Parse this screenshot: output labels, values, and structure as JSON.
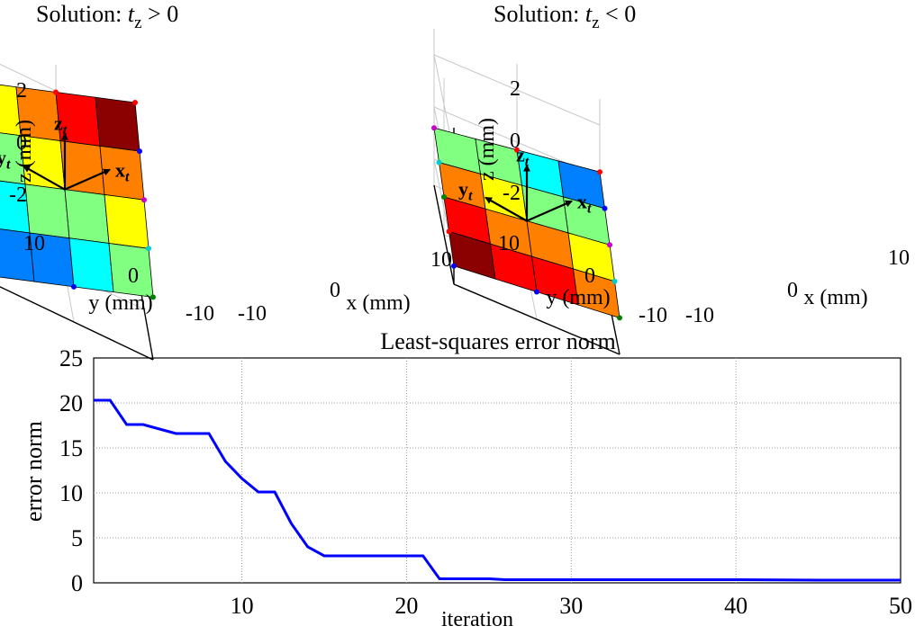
{
  "chart_data": [
    {
      "type": "surface3d",
      "title": {
        "prefix": "Solution: ",
        "var": "t",
        "sub": "z",
        "rel": " > 0"
      },
      "xlabel": "x (mm)",
      "ylabel": "y (mm)",
      "zlabel": "z (mm)",
      "xlim": [
        -10,
        10
      ],
      "ylim": [
        -10,
        10
      ],
      "zlim": [
        -3,
        3
      ],
      "xticks": [
        "-10",
        "0",
        "10"
      ],
      "yticks": [
        "-10",
        "0",
        "10"
      ],
      "zticks": [
        "-2",
        "0",
        "2"
      ],
      "frame_axes": {
        "x": "x",
        "y": "y",
        "z": "z",
        "sub": "t"
      },
      "plane_z_corners": {
        "x-y-": -2.7,
        "x+y-": -0.6,
        "x-y+": 0.9,
        "x+y+": 3.0
      },
      "grid_cells": 4,
      "colors": {
        "dark_red": "#8b0000",
        "red": "#ff0000",
        "orange": "#ff8000",
        "yellow": "#ffff00",
        "light_green": "#80ff80",
        "cyan": "#00ffff",
        "light_blue": "#0080ff",
        "blue": "#0000ff",
        "dark_blue": "#000090"
      }
    },
    {
      "type": "surface3d",
      "title": {
        "prefix": "Solution: ",
        "var": "t",
        "sub": "z",
        "rel": " < 0"
      },
      "xlabel": "x (mm)",
      "ylabel": "y (mm)",
      "zlabel": "z (mm)",
      "xlim": [
        -10,
        10
      ],
      "ylim": [
        -10,
        10
      ],
      "zlim": [
        -3,
        3
      ],
      "xticks": [
        "-10",
        "0",
        "10"
      ],
      "yticks": [
        "-10",
        "0",
        "10"
      ],
      "zticks": [
        "-2",
        "0",
        "2"
      ],
      "frame_axes": {
        "x": "x",
        "y": "y",
        "z": "z",
        "sub": "t"
      },
      "plane_z_corners": {
        "x-y-": -2.3,
        "x+y-": -1.6,
        "x-y+": -0.8,
        "x+y+": 0.2
      }
    },
    {
      "type": "line",
      "title": "Least-squares error norm",
      "xlabel": "iteration",
      "ylabel": "error norm",
      "xlim": [
        1,
        50
      ],
      "ylim": [
        0,
        25
      ],
      "xticks": [
        10,
        20,
        30,
        40,
        50
      ],
      "yticks": [
        0,
        5,
        10,
        15,
        20,
        25
      ],
      "grid": true,
      "series": [
        {
          "color": "#0000ff",
          "x": [
            1,
            2,
            3,
            4,
            5,
            6,
            7,
            8,
            9,
            10,
            11,
            12,
            13,
            14,
            15,
            16,
            17,
            18,
            19,
            20,
            21,
            22,
            23,
            24,
            25,
            26,
            30,
            35,
            40,
            45,
            50
          ],
          "y": [
            20.3,
            20.3,
            17.6,
            17.6,
            17.1,
            16.6,
            16.6,
            16.6,
            13.5,
            11.6,
            10.1,
            10.1,
            6.6,
            4.0,
            3.0,
            3.0,
            3.0,
            3.0,
            3.0,
            3.0,
            3.0,
            0.45,
            0.45,
            0.45,
            0.45,
            0.35,
            0.35,
            0.35,
            0.35,
            0.3,
            0.3
          ]
        }
      ]
    }
  ]
}
